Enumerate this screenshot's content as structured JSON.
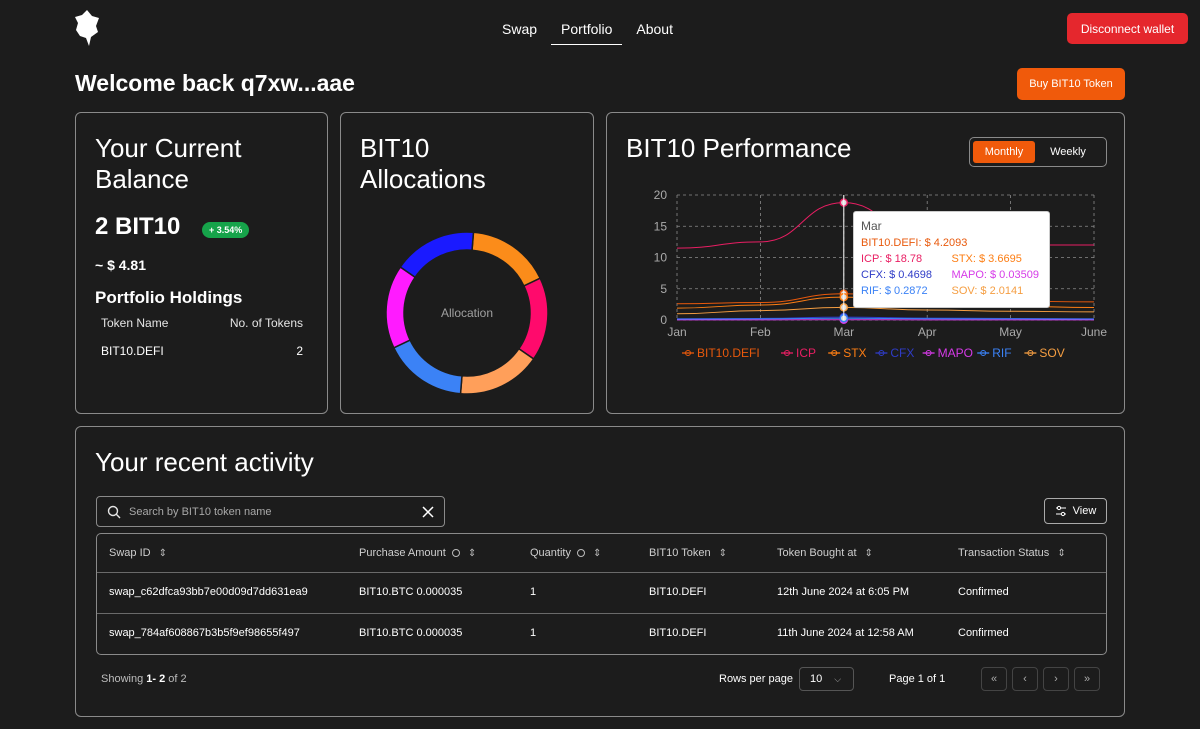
{
  "header": {
    "nav": [
      {
        "label": "Swap"
      },
      {
        "label": "Portfolio"
      },
      {
        "label": "About"
      }
    ],
    "disconnect_label": "Disconnect wallet",
    "buy_label": "Buy BIT10 Token",
    "welcome": "Welcome back q7xw...aae"
  },
  "balance": {
    "title": "Your Current Balance",
    "amount": "2 BIT10",
    "change": "+ 3.54%",
    "usd": "~ $ 4.81",
    "holdings_title": "Portfolio Holdings",
    "col_token": "Token Name",
    "col_count": "No. of Tokens",
    "rows": [
      {
        "token": "BIT10.DEFI",
        "count": "2"
      }
    ]
  },
  "allocations": {
    "title": "BIT10 Allocations",
    "center_label": "Allocation",
    "segments": [
      {
        "color": "#fb8c1a",
        "share": 16.67
      },
      {
        "color": "#ff0a6c",
        "share": 16.67
      },
      {
        "color": "#ff9f5a",
        "share": 16.67
      },
      {
        "color": "#3b82f6",
        "share": 16.67
      },
      {
        "color": "#ff1bff",
        "share": 16.67
      },
      {
        "color": "#1a1aff",
        "share": 16.67
      }
    ]
  },
  "performance": {
    "title": "BIT10 Performance",
    "toggle_monthly": "Monthly",
    "toggle_weekly": "Weekly",
    "tooltip": {
      "title": "Mar",
      "rows": [
        [
          {
            "text": "BIT10.DEFI: $ 4.2093",
            "color": "#e8590c"
          }
        ],
        [
          {
            "text": "ICP: $ 18.78",
            "color": "#e91e63"
          },
          {
            "text": "STX: $ 3.6695",
            "color": "#fd7e14"
          }
        ],
        [
          {
            "text": "CFX: $ 0.4698",
            "color": "#2f3cc7"
          },
          {
            "text": "MAPO: $ 0.03509",
            "color": "#d63ae8"
          }
        ],
        [
          {
            "text": "RIF: $ 0.2872",
            "color": "#3b82f6"
          },
          {
            "text": "SOV: $ 2.0141",
            "color": "#f59e42"
          }
        ]
      ]
    }
  },
  "chart_data": {
    "type": "line",
    "x": [
      "Jan",
      "Feb",
      "Mar",
      "Apr",
      "May",
      "June"
    ],
    "ylim": [
      0,
      20
    ],
    "yticks": [
      "0",
      "5",
      "10",
      "15",
      "20"
    ],
    "grid": true,
    "legend": "bottom",
    "series": [
      {
        "name": "BIT10.DEFI",
        "color": "#e8590c",
        "values": [
          2.6,
          2.8,
          4.2093,
          3.2,
          3.0,
          2.9
        ]
      },
      {
        "name": "ICP",
        "color": "#e91e63",
        "values": [
          11.5,
          12.5,
          18.78,
          12.5,
          12.0,
          12.0
        ]
      },
      {
        "name": "STX",
        "color": "#fd7e14",
        "values": [
          1.9,
          2.4,
          3.6695,
          2.5,
          2.2,
          2.0
        ]
      },
      {
        "name": "CFX",
        "color": "#2f3cc7",
        "values": [
          0.2,
          0.25,
          0.4698,
          0.3,
          0.25,
          0.2
        ]
      },
      {
        "name": "MAPO",
        "color": "#d63ae8",
        "values": [
          0.02,
          0.025,
          0.03509,
          0.03,
          0.025,
          0.02
        ]
      },
      {
        "name": "RIF",
        "color": "#3b82f6",
        "values": [
          0.15,
          0.18,
          0.2872,
          0.2,
          0.18,
          0.15
        ]
      },
      {
        "name": "SOV",
        "color": "#f59e42",
        "values": [
          1.0,
          1.5,
          2.0141,
          1.6,
          1.4,
          1.3
        ]
      }
    ]
  },
  "activity": {
    "title": "Your recent activity",
    "search_placeholder": "Search by BIT10 token name",
    "view_label": "View",
    "columns": [
      "Swap ID",
      "Purchase Amount",
      "Quantity",
      "BIT10 Token",
      "Token Bought at",
      "Transaction Status"
    ],
    "rows": [
      [
        "swap_c62dfca93bb7e00d09d7dd631ea9",
        "BIT10.BTC 0.000035",
        "1",
        "BIT10.DEFI",
        "12th June 2024 at 6:05 PM",
        "Confirmed"
      ],
      [
        "swap_784af608867b3b5f9ef98655f497",
        "BIT10.BTC 0.000035",
        "1",
        "BIT10.DEFI",
        "11th June 2024 at 12:58 AM",
        "Confirmed"
      ]
    ],
    "showing_prefix": "Showing ",
    "showing_range": "1- 2",
    "showing_suffix": " of 2",
    "rows_per_page_label": "Rows per page",
    "rows_per_page_value": "10",
    "page_info": "Page 1 of 1"
  }
}
